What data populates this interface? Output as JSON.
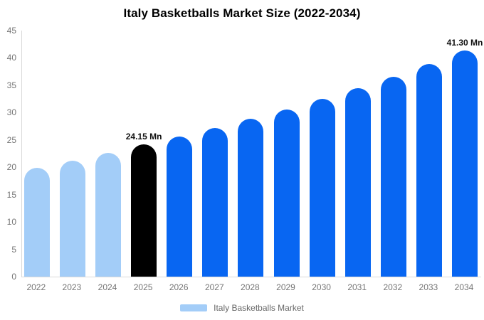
{
  "chart_data": {
    "type": "bar",
    "title": "Italy Basketballs Market Size (2022-2034)",
    "xlabel": "",
    "ylabel": "",
    "unit": "Mn",
    "categories": [
      "2022",
      "2023",
      "2024",
      "2025",
      "2026",
      "2027",
      "2028",
      "2029",
      "2030",
      "2031",
      "2032",
      "2033",
      "2034"
    ],
    "values": [
      19.9,
      21.2,
      22.6,
      24.15,
      25.6,
      27.2,
      28.9,
      30.6,
      32.5,
      34.5,
      36.6,
      38.9,
      41.3
    ],
    "bar_color_roles": [
      "light",
      "light",
      "light",
      "highlight",
      "primary",
      "primary",
      "primary",
      "primary",
      "primary",
      "primary",
      "primary",
      "primary",
      "primary"
    ],
    "colors": {
      "light": "#a3cdf8",
      "primary": "#0866f2",
      "highlight": "#000000",
      "axis_line": "#d9d9d9",
      "tick_label": "#757575",
      "annotation": "#111111"
    },
    "ylim": [
      0,
      45
    ],
    "ytick_step": 5,
    "grid": false,
    "annotations": [
      {
        "category": "2025",
        "index": 3,
        "text": "24.15 Mn"
      },
      {
        "category": "2034",
        "index": 12,
        "text": "41.30 Mn"
      }
    ],
    "legend": {
      "position": "bottom",
      "label": "Italy Basketballs Market",
      "swatch_color": "#a3cdf8"
    }
  }
}
